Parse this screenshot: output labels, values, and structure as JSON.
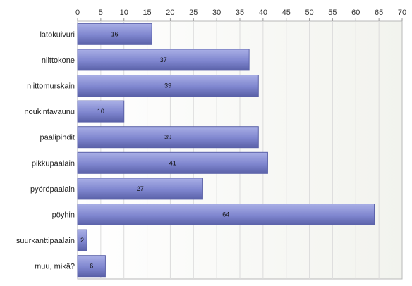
{
  "chart_data": {
    "type": "bar",
    "orientation": "horizontal",
    "categories": [
      "latokuivuri",
      "niittokone",
      "niittomurskain",
      "noukintavaunu",
      "paalipihdit",
      "pikkupaalain",
      "pyöröpaalain",
      "pöyhin",
      "suurkanttipaalain",
      "muu, mikä?"
    ],
    "values": [
      16,
      37,
      39,
      10,
      39,
      41,
      27,
      64,
      2,
      6
    ],
    "xlim": [
      0,
      70
    ],
    "xticks": [
      0,
      5,
      10,
      15,
      20,
      25,
      30,
      35,
      40,
      45,
      50,
      55,
      60,
      65,
      70
    ],
    "axis_position": "top",
    "grid": true,
    "data_labels": true,
    "bar_color": "#7f86cf",
    "bar_color_light": "#a9afe6",
    "bar_border": "#5a61a8",
    "background_color": "#f2f3ee"
  }
}
